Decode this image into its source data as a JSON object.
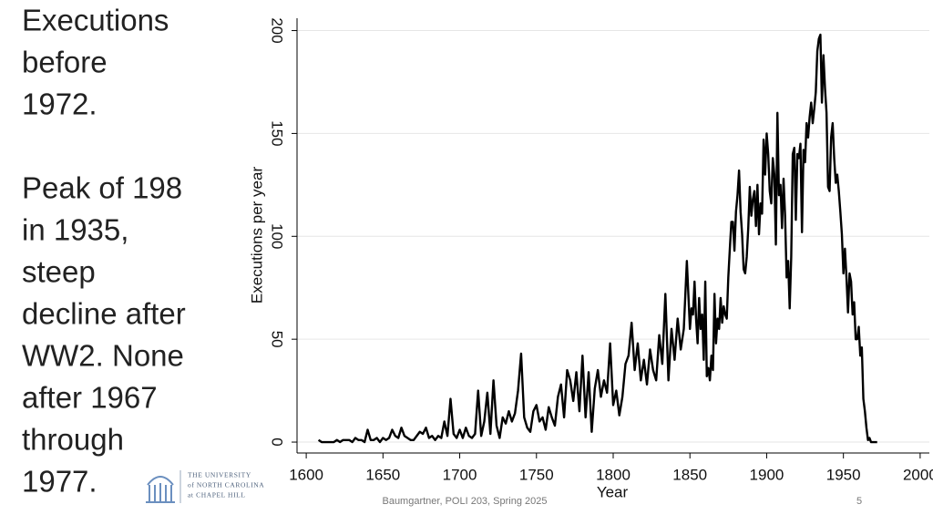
{
  "slide": {
    "text_block_1": [
      "Executions",
      "before",
      "1972."
    ],
    "text_block_2": [
      "Peak of 198",
      "in 1935,",
      "steep",
      "decline after",
      "WW2. None",
      "after 1967",
      "through",
      "1977."
    ],
    "logo": [
      "THE UNIVERSITY",
      "of NORTH CAROLINA",
      "at CHAPEL HILL"
    ],
    "footer": "Baumgartner, POLI 203, Spring 2025",
    "page_number": "5"
  },
  "chart_data": {
    "type": "line",
    "x_label": "Year",
    "y_label": "Executions per year",
    "color": "#000000",
    "grid": true,
    "xlim": [
      1594,
      2006
    ],
    "ylim": [
      -5.3,
      206
    ],
    "xticks": [
      1600,
      1650,
      1700,
      1750,
      1800,
      1850,
      1900,
      1950,
      2000
    ],
    "yticks": [
      0,
      50,
      100,
      150,
      200
    ],
    "x": [
      1608,
      1610,
      1612,
      1614,
      1616,
      1618,
      1620,
      1622,
      1624,
      1626,
      1628,
      1630,
      1632,
      1634,
      1636,
      1638,
      1640,
      1642,
      1644,
      1646,
      1648,
      1650,
      1652,
      1654,
      1656,
      1658,
      1660,
      1662,
      1664,
      1666,
      1668,
      1670,
      1672,
      1674,
      1676,
      1678,
      1680,
      1682,
      1684,
      1686,
      1688,
      1690,
      1692,
      1694,
      1696,
      1698,
      1700,
      1702,
      1704,
      1706,
      1708,
      1710,
      1712,
      1714,
      1716,
      1718,
      1720,
      1722,
      1724,
      1726,
      1728,
      1730,
      1732,
      1734,
      1736,
      1738,
      1740,
      1742,
      1744,
      1746,
      1748,
      1750,
      1752,
      1754,
      1756,
      1758,
      1760,
      1762,
      1764,
      1766,
      1768,
      1770,
      1772,
      1774,
      1776,
      1778,
      1780,
      1782,
      1784,
      1786,
      1788,
      1790,
      1792,
      1794,
      1796,
      1798,
      1800,
      1802,
      1804,
      1806,
      1808,
      1810,
      1812,
      1814,
      1816,
      1818,
      1820,
      1822,
      1824,
      1826,
      1828,
      1830,
      1832,
      1834,
      1836,
      1838,
      1840,
      1842,
      1844,
      1846,
      1848,
      1850,
      1851,
      1852,
      1853,
      1854,
      1855,
      1856,
      1857,
      1858,
      1859,
      1860,
      1861,
      1862,
      1863,
      1864,
      1865,
      1866,
      1867,
      1868,
      1869,
      1870,
      1871,
      1872,
      1873,
      1874,
      1875,
      1876,
      1877,
      1878,
      1879,
      1880,
      1881,
      1882,
      1883,
      1884,
      1885,
      1886,
      1887,
      1888,
      1889,
      1890,
      1891,
      1892,
      1893,
      1894,
      1895,
      1896,
      1897,
      1898,
      1899,
      1900,
      1901,
      1902,
      1903,
      1904,
      1905,
      1906,
      1907,
      1908,
      1909,
      1910,
      1911,
      1912,
      1913,
      1914,
      1915,
      1916,
      1917,
      1918,
      1919,
      1920,
      1921,
      1922,
      1923,
      1924,
      1925,
      1926,
      1927,
      1928,
      1929,
      1930,
      1931,
      1932,
      1933,
      1934,
      1935,
      1936,
      1937,
      1938,
      1939,
      1940,
      1941,
      1942,
      1943,
      1944,
      1945,
      1946,
      1947,
      1948,
      1949,
      1950,
      1951,
      1952,
      1953,
      1954,
      1955,
      1956,
      1957,
      1958,
      1959,
      1960,
      1961,
      1962,
      1963,
      1964,
      1965,
      1966,
      1967,
      1968,
      1969,
      1970,
      1971,
      1972
    ],
    "values": [
      1,
      0,
      0,
      0,
      0,
      0,
      1,
      0,
      1,
      1,
      1,
      0,
      2,
      1,
      1,
      0,
      6,
      1,
      1,
      2,
      0,
      2,
      1,
      2,
      6,
      3,
      2,
      7,
      3,
      2,
      1,
      1,
      3,
      5,
      4,
      7,
      2,
      3,
      1,
      3,
      2,
      10,
      3,
      21,
      4,
      2,
      6,
      2,
      7,
      3,
      2,
      4,
      25,
      3,
      10,
      24,
      4,
      30,
      8,
      2,
      12,
      9,
      15,
      10,
      14,
      25,
      43,
      12,
      7,
      5,
      15,
      18,
      10,
      12,
      6,
      17,
      12,
      8,
      22,
      28,
      12,
      35,
      30,
      20,
      34,
      15,
      42,
      12,
      34,
      5,
      26,
      35,
      22,
      30,
      24,
      48,
      18,
      25,
      13,
      22,
      38,
      42,
      58,
      35,
      48,
      30,
      40,
      28,
      45,
      35,
      30,
      52,
      38,
      72,
      30,
      55,
      40,
      60,
      45,
      55,
      88,
      55,
      65,
      62,
      78,
      60,
      48,
      70,
      55,
      62,
      40,
      78,
      32,
      36,
      30,
      42,
      35,
      72,
      48,
      60,
      55,
      70,
      58,
      66,
      62,
      60,
      80,
      94,
      107,
      107,
      93,
      112,
      120,
      132,
      112,
      101,
      84,
      82,
      90,
      104,
      124,
      110,
      118,
      122,
      105,
      125,
      101,
      116,
      111,
      147,
      130,
      150,
      140,
      122,
      116,
      138,
      130,
      96,
      160,
      120,
      125,
      104,
      128,
      110,
      80,
      88,
      65,
      90,
      140,
      143,
      108,
      140,
      138,
      145,
      102,
      142,
      136,
      155,
      148,
      158,
      165,
      155,
      162,
      170,
      190,
      196,
      198,
      165,
      188,
      172,
      160,
      124,
      122,
      148,
      155,
      138,
      126,
      130,
      122,
      112,
      101,
      82,
      94,
      80,
      63,
      82,
      78,
      62,
      68,
      50,
      50,
      56,
      42,
      46,
      21,
      15,
      7,
      1,
      2,
      0,
      0,
      0,
      0,
      0
    ]
  }
}
